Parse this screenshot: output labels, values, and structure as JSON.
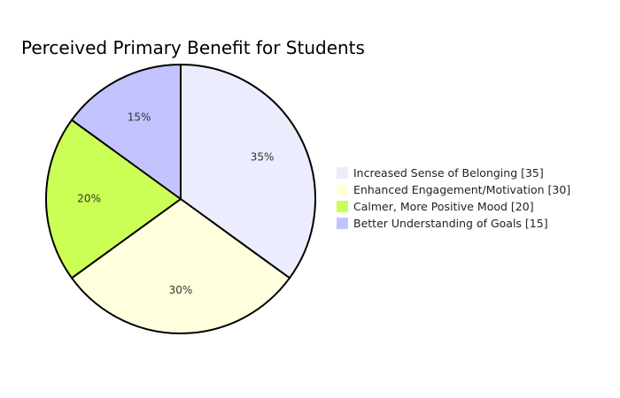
{
  "chart_data": {
    "type": "pie",
    "title": "Perceived Primary Benefit for Students",
    "categories": [
      "Increased Sense of Belonging",
      "Enhanced Engagement/Motivation",
      "Calmer, More Positive Mood",
      "Better Understanding of Goals"
    ],
    "values": [
      35,
      30,
      20,
      15
    ],
    "slice_labels": [
      "35%",
      "30%",
      "20%",
      "15%"
    ],
    "legend_labels": [
      "Increased Sense of Belonging [35]",
      "Enhanced Engagement/Motivation [30]",
      "Calmer, More Positive Mood [20]",
      "Better Understanding of Goals [15]"
    ],
    "colors": [
      "#ececff",
      "#ffffde",
      "#ccff55",
      "#c3c3ff"
    ],
    "legend_position": "right",
    "start": "12 o'clock",
    "direction": "clockwise"
  }
}
